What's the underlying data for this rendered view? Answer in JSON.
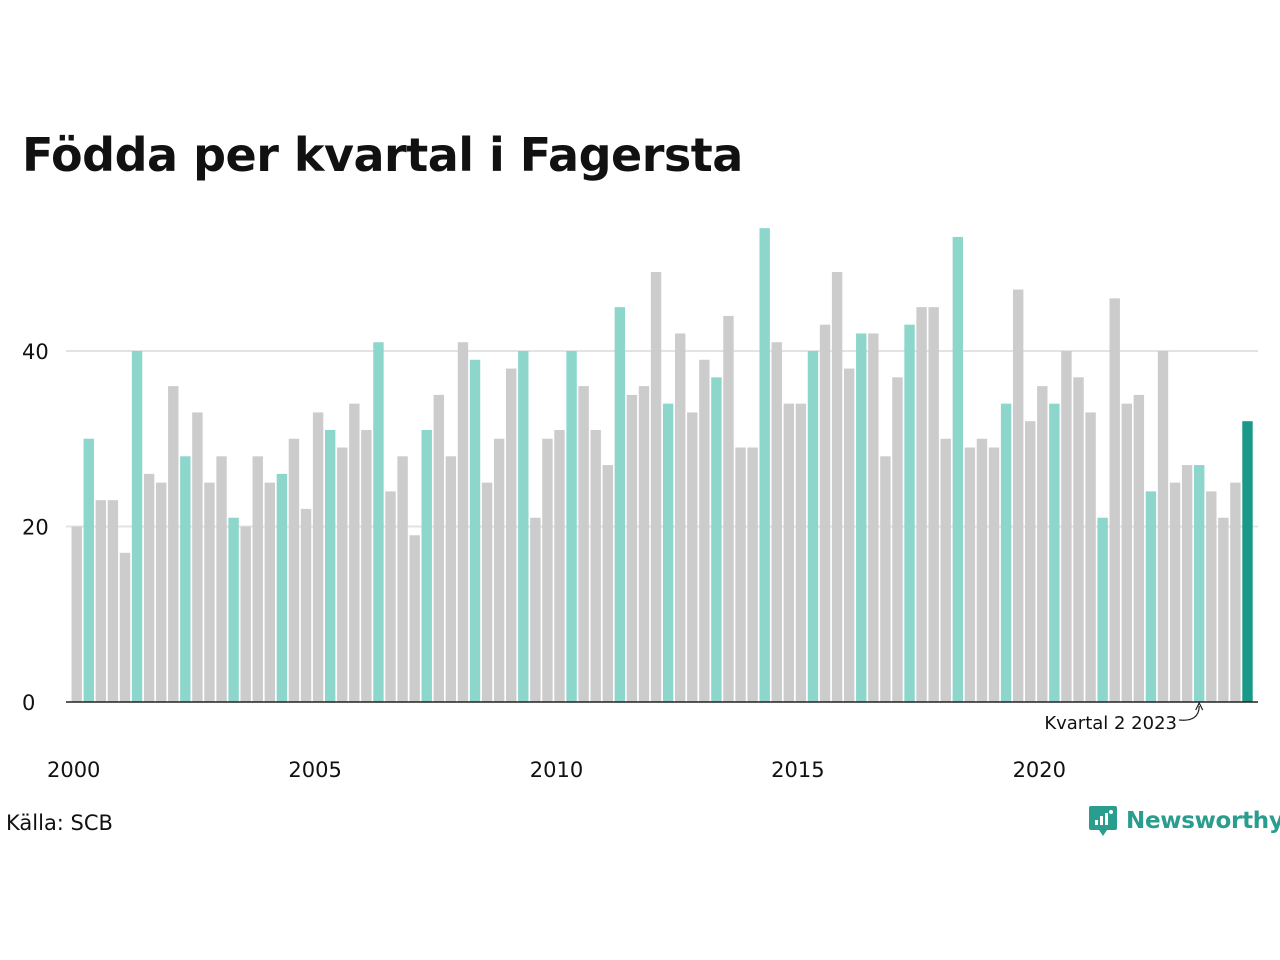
{
  "title": "Födda per kvartal i Fagersta",
  "source": "Källa: SCB",
  "brand": "Newsworthy",
  "colors": {
    "highlight": "#8dd6cc",
    "other": "#cccccc",
    "latest": "#1a9888",
    "axis": "#222222",
    "grid": "#e3e3e3"
  },
  "chart_data": {
    "type": "bar",
    "title": "Födda per kvartal i Fagersta",
    "ylim": [
      0,
      56
    ],
    "y_ticks": [
      0,
      20,
      40
    ],
    "x_tick_labels": [
      "2000",
      "2005",
      "2010",
      "2015",
      "2020"
    ],
    "grid": true,
    "annotation": {
      "text": "Kvartal 2 2023",
      "target_index": 93
    },
    "highlight_rule": "Q2 bars highlighted in teal, latest quarter in dark teal",
    "values": [
      20,
      30,
      23,
      23,
      17,
      40,
      26,
      25,
      36,
      28,
      33,
      25,
      28,
      21,
      20,
      28,
      25,
      26,
      30,
      22,
      33,
      31,
      29,
      34,
      31,
      41,
      24,
      28,
      19,
      31,
      35,
      28,
      41,
      39,
      25,
      30,
      38,
      40,
      21,
      30,
      31,
      40,
      36,
      31,
      27,
      45,
      35,
      36,
      49,
      34,
      42,
      33,
      39,
      37,
      44,
      29,
      29,
      54,
      41,
      34,
      34,
      40,
      43,
      49,
      38,
      42,
      42,
      28,
      37,
      43,
      45,
      45,
      30,
      53,
      29,
      30,
      29,
      34,
      47,
      32,
      36,
      34,
      40,
      37,
      33,
      21,
      46,
      34,
      35,
      24,
      40,
      25,
      27,
      27,
      24,
      21,
      25,
      32
    ]
  }
}
